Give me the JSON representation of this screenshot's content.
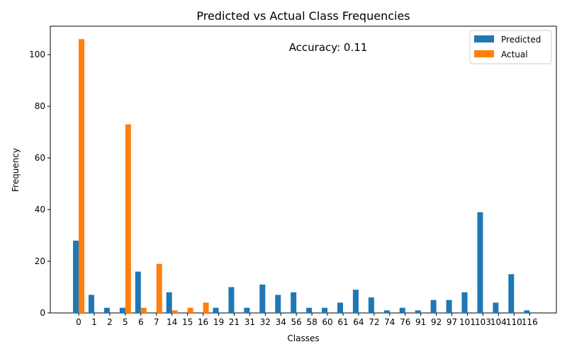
{
  "chart_data": {
    "type": "bar",
    "title": "Predicted vs Actual Class Frequencies",
    "xlabel": "Classes",
    "ylabel": "Frequency",
    "ylim": [
      0,
      111
    ],
    "yticks": [
      0,
      20,
      40,
      60,
      80,
      100
    ],
    "categories": [
      "0",
      "1",
      "2",
      "5",
      "6",
      "7",
      "14",
      "15",
      "16",
      "19",
      "21",
      "31",
      "32",
      "34",
      "56",
      "58",
      "60",
      "61",
      "64",
      "72",
      "74",
      "76",
      "91",
      "92",
      "97",
      "101",
      "103",
      "104",
      "110",
      "116"
    ],
    "series": [
      {
        "name": "Predicted",
        "color": "#1f77b4",
        "values": [
          28,
          7,
          2,
          2,
          16,
          0,
          8,
          0,
          0,
          2,
          10,
          2,
          11,
          7,
          8,
          2,
          2,
          4,
          9,
          6,
          1,
          2,
          1,
          5,
          5,
          8,
          39,
          4,
          15,
          1
        ]
      },
      {
        "name": "Actual",
        "color": "#ff7f0e",
        "values": [
          106,
          0,
          0,
          73,
          2,
          19,
          1,
          2,
          4,
          0,
          0,
          0,
          0,
          0,
          0,
          0,
          0,
          0,
          0,
          0,
          0,
          0,
          0,
          0,
          0,
          0,
          0,
          0,
          0,
          0
        ]
      }
    ],
    "legend": "top-right",
    "annotation": "Accuracy: 0.11",
    "grid": false
  }
}
